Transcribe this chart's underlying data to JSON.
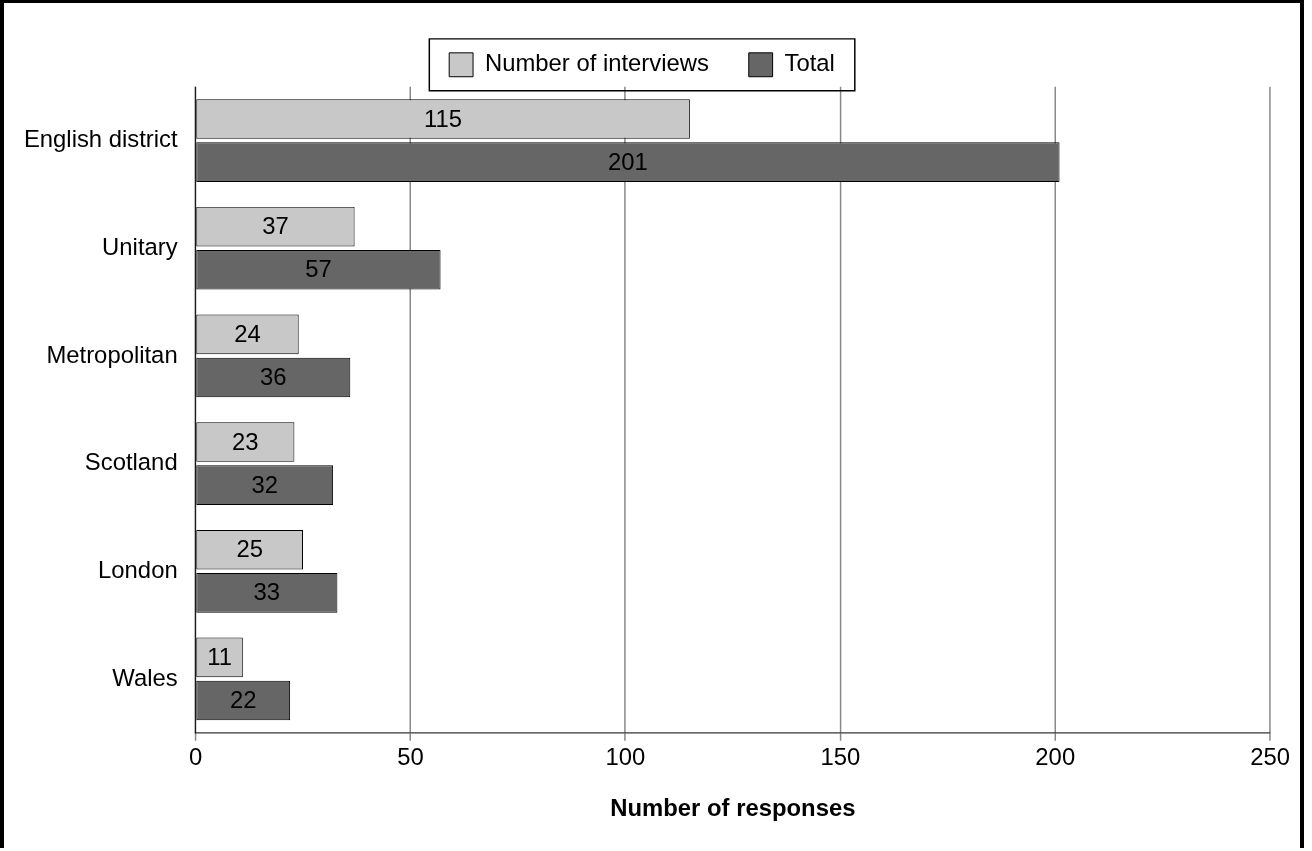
{
  "chart_data": {
    "type": "bar",
    "orientation": "horizontal",
    "categories": [
      "English district",
      "Unitary",
      "Metropolitan",
      "Scotland",
      "London",
      "Wales"
    ],
    "series": [
      {
        "name": "Number of interviews",
        "color": "#c8c8c8",
        "values": [
          115,
          37,
          24,
          23,
          25,
          11
        ]
      },
      {
        "name": "Total",
        "color": "#666666",
        "values": [
          201,
          57,
          36,
          32,
          33,
          22
        ]
      }
    ],
    "xlabel": "Number of responses",
    "xlim": [
      0,
      250
    ],
    "xticks": [
      0,
      50,
      100,
      150,
      200,
      250
    ],
    "grid": "x",
    "legend": "top",
    "data_labels": true
  }
}
